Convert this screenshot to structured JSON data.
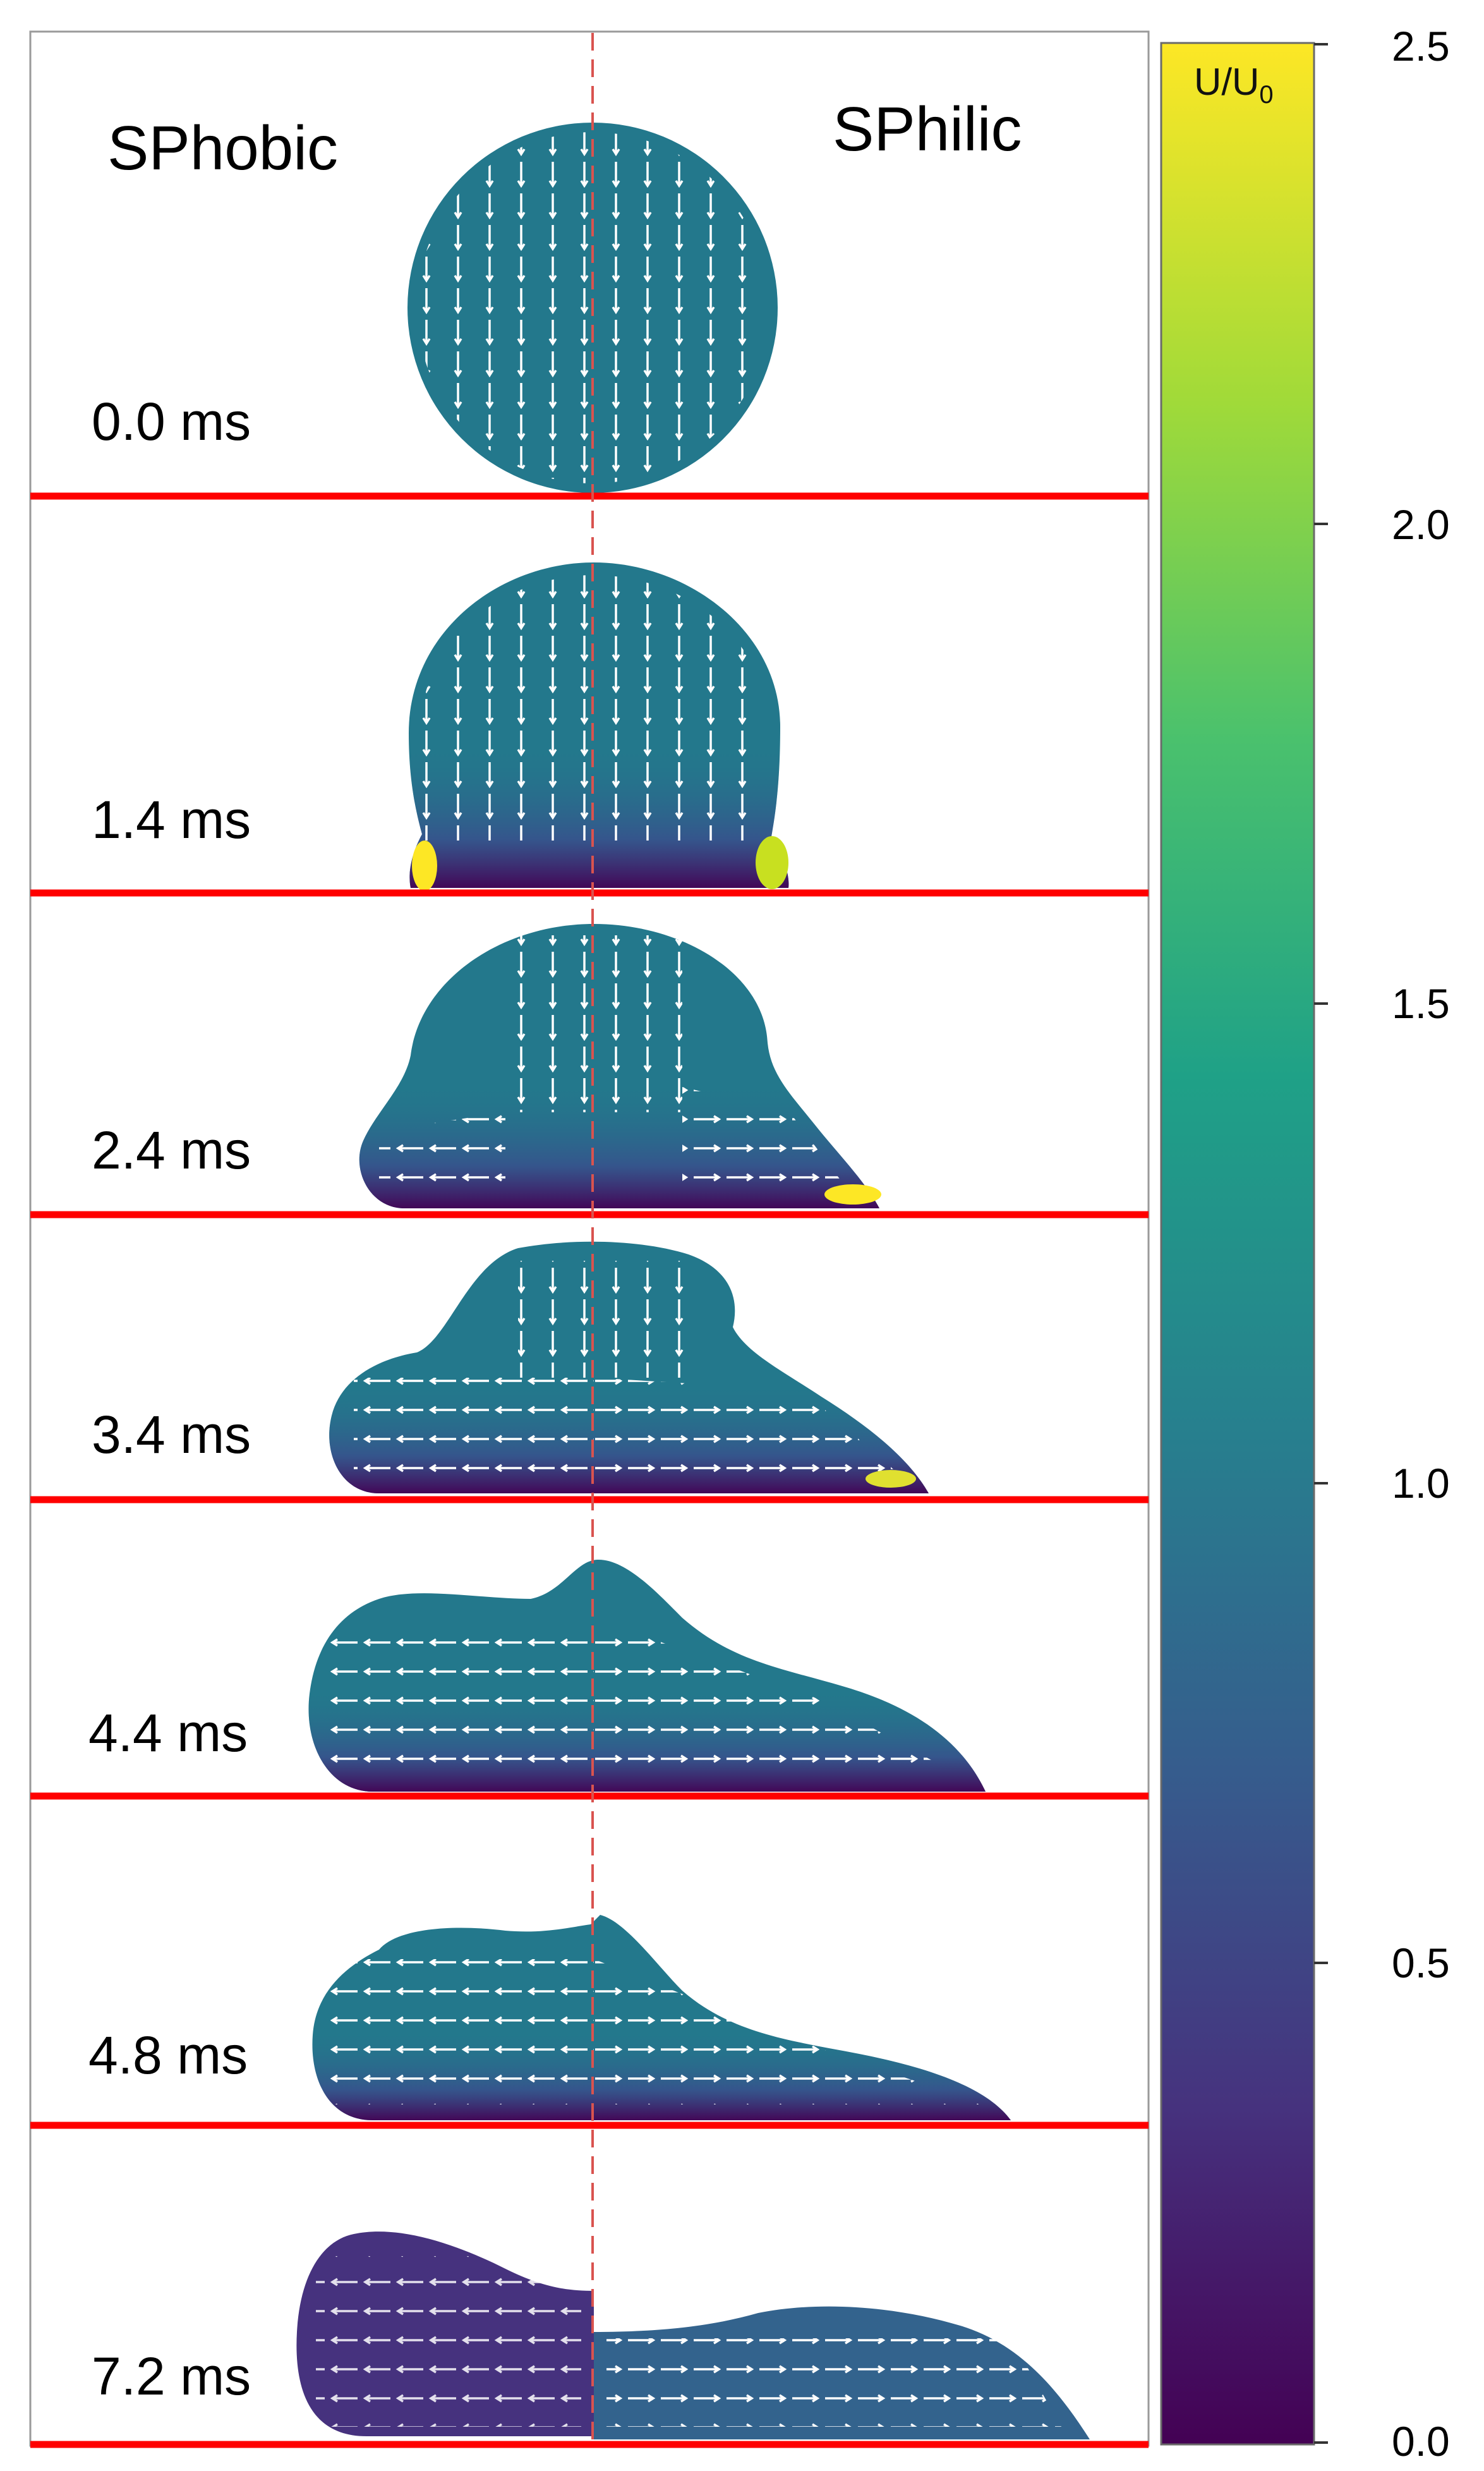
{
  "labels": {
    "left_side": "SPhobic",
    "right_side": "SPhilic"
  },
  "panels": [
    {
      "time": "0.0 ms"
    },
    {
      "time": "1.4 ms"
    },
    {
      "time": "2.4 ms"
    },
    {
      "time": "3.4 ms"
    },
    {
      "time": "4.4 ms"
    },
    {
      "time": "4.8 ms"
    },
    {
      "time": "7.2 ms"
    }
  ],
  "colorbar": {
    "title_main": "U/U",
    "title_sub": "0",
    "ticks": [
      "2.5",
      "2.0",
      "1.5",
      "1.0",
      "0.5",
      "0.0"
    ],
    "range": [
      0.0,
      2.5
    ],
    "colormap": [
      "#440154",
      "#46327e",
      "#365c8d",
      "#277f8e",
      "#1fa187",
      "#4ac16d",
      "#a0da39",
      "#fde725"
    ]
  },
  "colors": {
    "substrate_line": "#ff0000",
    "symmetry_axis": "#d9534f",
    "droplet_bulk": "#23788c",
    "velocity_arrows": "#ffffff"
  }
}
